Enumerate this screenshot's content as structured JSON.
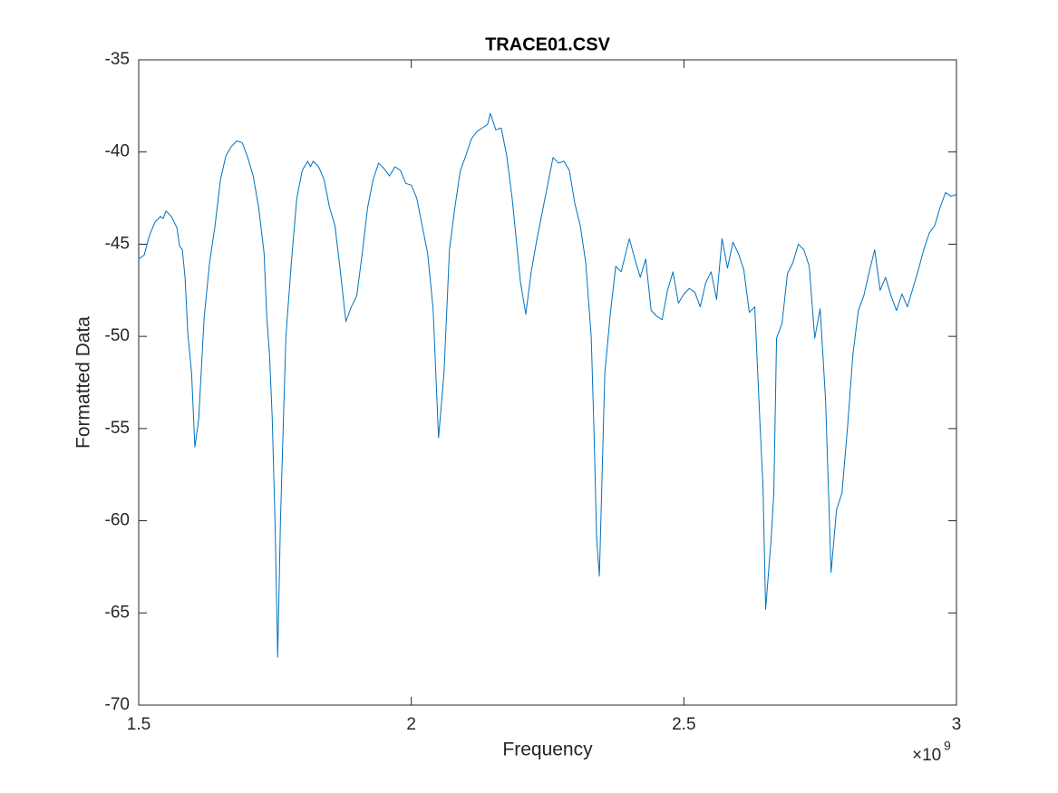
{
  "chart_data": {
    "type": "line",
    "title": "TRACE01.CSV",
    "x_label": "Frequency",
    "y_label": "Formatted Data",
    "x_multiplier": {
      "base": "×10",
      "exponent": "9"
    },
    "color": "#0072bd",
    "xlim": [
      1500000000,
      3000000000
    ],
    "xticks": [
      {
        "value": 1500000000,
        "label": "1.5"
      },
      {
        "value": 2000000000,
        "label": "2"
      },
      {
        "value": 2500000000,
        "label": "2.5"
      },
      {
        "value": 3000000000,
        "label": "3"
      }
    ],
    "ylim": [
      -70,
      -35
    ],
    "yticks": [
      -70,
      -65,
      -60,
      -55,
      -50,
      -45,
      -40,
      -35
    ],
    "grid": false,
    "x": [
      1500000000,
      1510000000,
      1520000000,
      1530000000,
      1540000000,
      1545000000,
      1550000000,
      1560000000,
      1570000000,
      1575000000,
      1580000000,
      1585000000,
      1590000000,
      1597000000,
      1603000000,
      1610000000,
      1620000000,
      1630000000,
      1640000000,
      1650000000,
      1660000000,
      1670000000,
      1680000000,
      1690000000,
      1700000000,
      1710000000,
      1720000000,
      1730000000,
      1735000000,
      1740000000,
      1745000000,
      1750000000,
      1755000000,
      1760000000,
      1770000000,
      1780000000,
      1790000000,
      1800000000,
      1810000000,
      1815000000,
      1820000000,
      1830000000,
      1840000000,
      1850000000,
      1860000000,
      1870000000,
      1880000000,
      1890000000,
      1900000000,
      1910000000,
      1920000000,
      1930000000,
      1940000000,
      1950000000,
      1960000000,
      1970000000,
      1980000000,
      1990000000,
      2000000000,
      2010000000,
      2020000000,
      2030000000,
      2040000000,
      2050000000,
      2060000000,
      2070000000,
      2080000000,
      2090000000,
      2100000000,
      2110000000,
      2120000000,
      2130000000,
      2140000000,
      2145000000,
      2155000000,
      2165000000,
      2175000000,
      2185000000,
      2195000000,
      2200000000,
      2210000000,
      2220000000,
      2230000000,
      2240000000,
      2250000000,
      2260000000,
      2270000000,
      2280000000,
      2290000000,
      2300000000,
      2310000000,
      2320000000,
      2330000000,
      2335000000,
      2340000000,
      2345000000,
      2355000000,
      2365000000,
      2375000000,
      2385000000,
      2395000000,
      2400000000,
      2410000000,
      2420000000,
      2430000000,
      2440000000,
      2450000000,
      2460000000,
      2470000000,
      2480000000,
      2490000000,
      2500000000,
      2510000000,
      2520000000,
      2530000000,
      2540000000,
      2550000000,
      2560000000,
      2570000000,
      2580000000,
      2590000000,
      2600000000,
      2610000000,
      2620000000,
      2630000000,
      2640000000,
      2645000000,
      2650000000,
      2660000000,
      2665000000,
      2670000000,
      2680000000,
      2690000000,
      2700000000,
      2710000000,
      2720000000,
      2730000000,
      2740000000,
      2750000000,
      2760000000,
      2770000000,
      2780000000,
      2790000000,
      2800000000,
      2810000000,
      2820000000,
      2830000000,
      2840000000,
      2850000000,
      2860000000,
      2870000000,
      2880000000,
      2890000000,
      2900000000,
      2910000000,
      2920000000,
      2930000000,
      2940000000,
      2950000000,
      2960000000,
      2970000000,
      2980000000,
      2990000000,
      3000000000
    ],
    "values": [
      -45.8,
      -45.6,
      -44.5,
      -43.8,
      -43.5,
      -43.6,
      -43.2,
      -43.5,
      -44.1,
      -45.1,
      -45.3,
      -46.8,
      -49.8,
      -52,
      -56,
      -54.5,
      -49,
      -46,
      -44,
      -41.5,
      -40.2,
      -39.7,
      -39.4,
      -39.5,
      -40.3,
      -41.3,
      -43,
      -45.5,
      -49,
      -51,
      -54.5,
      -60,
      -67.4,
      -60,
      -50,
      -46,
      -42.5,
      -41,
      -40.5,
      -40.8,
      -40.5,
      -40.8,
      -41.5,
      -43,
      -44,
      -46.5,
      -49.2,
      -48.4,
      -47.8,
      -45.5,
      -43,
      -41.5,
      -40.6,
      -40.9,
      -41.3,
      -40.8,
      -41,
      -41.7,
      -41.8,
      -42.5,
      -44,
      -45.5,
      -48.5,
      -55.5,
      -52,
      -45.3,
      -43,
      -41,
      -40.2,
      -39.3,
      -38.9,
      -38.7,
      -38.5,
      -37.9,
      -38.8,
      -38.7,
      -40.2,
      -42.5,
      -45.5,
      -47,
      -48.8,
      -46.5,
      -44.8,
      -43.3,
      -41.8,
      -40.3,
      -40.6,
      -40.5,
      -41,
      -42.8,
      -44,
      -46,
      -50,
      -55,
      -61,
      -63,
      -52,
      -48.8,
      -46.2,
      -46.5,
      -45.3,
      -44.7,
      -45.8,
      -46.8,
      -45.8,
      -48.6,
      -48.9,
      -49.1,
      -47.5,
      -46.5,
      -48.2,
      -47.7,
      -47.4,
      -47.6,
      -48.4,
      -47.1,
      -46.5,
      -48,
      -44.7,
      -46.3,
      -44.9,
      -45.5,
      -46.4,
      -48.7,
      -48.4,
      -55,
      -58,
      -64.8,
      -61,
      -58.5,
      -50.1,
      -49.3,
      -46.6,
      -46,
      -45,
      -45.3,
      -46.2,
      -50.1,
      -48.5,
      -53.5,
      -62.8,
      -59.4,
      -58.5,
      -55,
      -51,
      -48.6,
      -47.8,
      -46.5,
      -45.3,
      -47.5,
      -46.8,
      -47.8,
      -48.6,
      -47.7,
      -48.4,
      -47.4,
      -46.4,
      -45.3,
      -44.4,
      -44,
      -43,
      -42.2,
      -42.4,
      -42.3
    ]
  }
}
